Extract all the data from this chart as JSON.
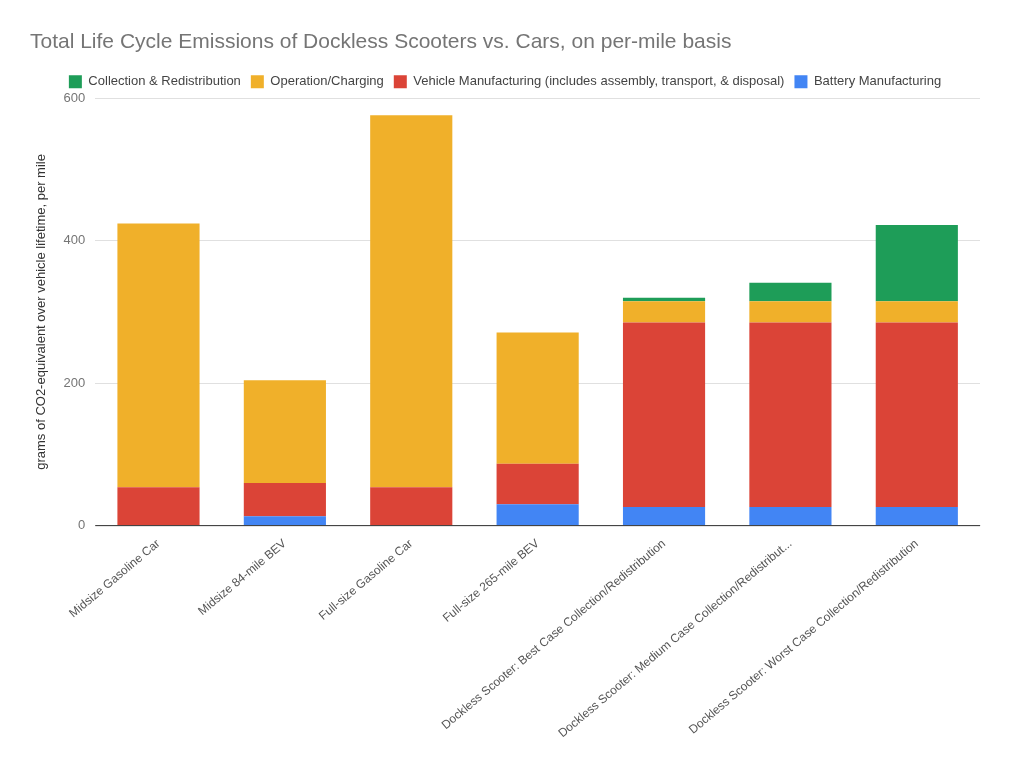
{
  "chart_data": {
    "type": "bar",
    "title": "Total Life Cycle Emissions of Dockless Scooters vs. Cars, on per-mile basis",
    "ylabel": "grams of CO2-equivalent over vehicle lifetime, per mile",
    "categories": [
      "Midsize Gasoline Car",
      "Midsize 84-mile BEV",
      "Full-size Gasoline Car",
      "Full-size 265-mile BEV",
      "Dockless Scooter: Best Case Collection/Redistribution",
      "Dockless Scooter: Medium Case Collection/Redistribut...",
      "Dockless Scooter: Worst Case Collection/Redistribution"
    ],
    "series": [
      {
        "name": "Battery Manufacturing",
        "color": "#4285f4",
        "values": [
          null,
          13,
          null,
          30,
          26,
          26,
          26
        ]
      },
      {
        "name": "Vehicle Manufacturing (includes assembly, transport, & disposal)",
        "color": "#db4437",
        "values": [
          54,
          47,
          54,
          57,
          259,
          259,
          259
        ]
      },
      {
        "name": "Operation/Charging",
        "color": "#f0b02a",
        "values": [
          370,
          144,
          522,
          184,
          30,
          30,
          30
        ]
      },
      {
        "name": "Collection & Redistribution",
        "color": "#1e9d58",
        "values": [
          null,
          null,
          null,
          null,
          5,
          26,
          107
        ]
      }
    ],
    "stacked": true,
    "ylim": [
      0,
      600
    ],
    "yticks": [
      0,
      200,
      400,
      600
    ],
    "grid": "y",
    "legend": "top"
  }
}
